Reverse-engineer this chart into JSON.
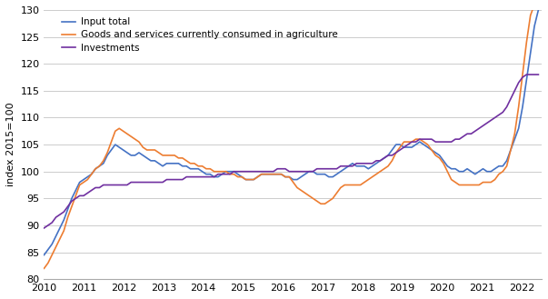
{
  "title": "",
  "ylabel": "index 2015=100",
  "ylim": [
    80,
    130
  ],
  "yticks": [
    80,
    85,
    90,
    95,
    100,
    105,
    110,
    115,
    120,
    125,
    130
  ],
  "xlim_start": 2010.0,
  "xlim_end": 2022.5,
  "xtick_labels": [
    "2010",
    "2011",
    "2012",
    "2013",
    "2014",
    "2015",
    "2016",
    "2017",
    "2018",
    "2019",
    "2020",
    "2021",
    "2022"
  ],
  "line_colors": {
    "input_total": "#4472C4",
    "goods_services": "#ED7D31",
    "investments": "#7030A0"
  },
  "legend": {
    "input_total": "Input total",
    "goods_services": "Goods and services currently consumed in agriculture",
    "investments": "Investments"
  },
  "background_color": "#ffffff",
  "grid_color": "#cccccc",
  "input_total": [
    84.5,
    85.5,
    86.5,
    88.0,
    89.5,
    91.0,
    93.0,
    95.0,
    96.5,
    98.0,
    98.5,
    99.0,
    99.5,
    100.5,
    101.0,
    101.5,
    103.0,
    104.0,
    105.0,
    104.5,
    104.0,
    103.5,
    103.0,
    103.0,
    103.5,
    103.0,
    102.5,
    102.0,
    102.0,
    101.5,
    101.0,
    101.5,
    101.5,
    101.5,
    101.5,
    101.0,
    101.0,
    100.5,
    100.5,
    100.5,
    100.0,
    99.5,
    99.5,
    99.0,
    99.0,
    99.5,
    100.0,
    100.0,
    100.0,
    99.5,
    99.0,
    98.5,
    98.5,
    98.5,
    99.0,
    99.5,
    99.5,
    99.5,
    99.5,
    99.5,
    99.5,
    99.0,
    99.0,
    98.5,
    98.5,
    99.0,
    99.5,
    100.0,
    100.0,
    99.5,
    99.5,
    99.5,
    99.0,
    99.0,
    99.5,
    100.0,
    100.5,
    101.0,
    101.5,
    101.0,
    101.0,
    101.0,
    100.5,
    101.0,
    101.5,
    102.0,
    102.5,
    103.0,
    104.0,
    105.0,
    105.0,
    104.5,
    104.5,
    104.5,
    105.0,
    105.5,
    105.0,
    104.5,
    104.0,
    103.5,
    103.0,
    102.0,
    101.0,
    100.5,
    100.5,
    100.0,
    100.0,
    100.5,
    100.0,
    99.5,
    100.0,
    100.5,
    100.0,
    100.0,
    100.5,
    101.0,
    101.0,
    102.0,
    104.0,
    106.0,
    108.0,
    112.0,
    117.0,
    122.0,
    127.0,
    130.0
  ],
  "goods_services": [
    82.0,
    83.0,
    84.5,
    86.0,
    87.5,
    89.0,
    91.5,
    93.5,
    95.5,
    97.5,
    98.0,
    98.5,
    99.5,
    100.5,
    101.0,
    102.0,
    103.5,
    105.5,
    107.5,
    108.0,
    107.5,
    107.0,
    106.5,
    106.0,
    105.5,
    104.5,
    104.0,
    104.0,
    104.0,
    103.5,
    103.0,
    103.0,
    103.0,
    103.0,
    102.5,
    102.5,
    102.0,
    101.5,
    101.5,
    101.0,
    101.0,
    100.5,
    100.5,
    100.0,
    100.0,
    100.0,
    100.0,
    99.5,
    99.5,
    99.0,
    99.0,
    98.5,
    98.5,
    98.5,
    99.0,
    99.5,
    99.5,
    99.5,
    99.5,
    99.5,
    99.5,
    99.0,
    99.0,
    98.0,
    97.0,
    96.5,
    96.0,
    95.5,
    95.0,
    94.5,
    94.0,
    94.0,
    94.5,
    95.0,
    96.0,
    97.0,
    97.5,
    97.5,
    97.5,
    97.5,
    97.5,
    98.0,
    98.5,
    99.0,
    99.5,
    100.0,
    100.5,
    101.0,
    102.0,
    103.5,
    104.5,
    105.5,
    105.5,
    105.5,
    106.0,
    106.0,
    105.5,
    105.0,
    104.0,
    103.0,
    102.5,
    101.5,
    100.0,
    98.5,
    98.0,
    97.5,
    97.5,
    97.5,
    97.5,
    97.5,
    97.5,
    98.0,
    98.0,
    98.0,
    98.5,
    99.5,
    100.0,
    101.0,
    104.0,
    107.0,
    112.0,
    118.0,
    124.0,
    129.0,
    131.0,
    131.0
  ],
  "investments": [
    89.5,
    90.0,
    90.5,
    91.5,
    92.0,
    92.5,
    93.5,
    94.5,
    95.0,
    95.5,
    95.5,
    96.0,
    96.5,
    97.0,
    97.0,
    97.5,
    97.5,
    97.5,
    97.5,
    97.5,
    97.5,
    97.5,
    98.0,
    98.0,
    98.0,
    98.0,
    98.0,
    98.0,
    98.0,
    98.0,
    98.0,
    98.5,
    98.5,
    98.5,
    98.5,
    98.5,
    99.0,
    99.0,
    99.0,
    99.0,
    99.0,
    99.0,
    99.0,
    99.0,
    99.5,
    99.5,
    99.5,
    99.5,
    100.0,
    100.0,
    100.0,
    100.0,
    100.0,
    100.0,
    100.0,
    100.0,
    100.0,
    100.0,
    100.0,
    100.5,
    100.5,
    100.5,
    100.0,
    100.0,
    100.0,
    100.0,
    100.0,
    100.0,
    100.0,
    100.5,
    100.5,
    100.5,
    100.5,
    100.5,
    100.5,
    101.0,
    101.0,
    101.0,
    101.0,
    101.5,
    101.5,
    101.5,
    101.5,
    101.5,
    102.0,
    102.0,
    102.5,
    103.0,
    103.0,
    103.5,
    104.0,
    104.5,
    105.0,
    105.5,
    105.5,
    106.0,
    106.0,
    106.0,
    106.0,
    105.5,
    105.5,
    105.5,
    105.5,
    105.5,
    106.0,
    106.0,
    106.5,
    107.0,
    107.0,
    107.5,
    108.0,
    108.5,
    109.0,
    109.5,
    110.0,
    110.5,
    111.0,
    112.0,
    113.5,
    115.0,
    116.5,
    117.5,
    118.0,
    118.0,
    118.0,
    118.0
  ],
  "start_year": 2010.0,
  "end_year": 2022.4167
}
